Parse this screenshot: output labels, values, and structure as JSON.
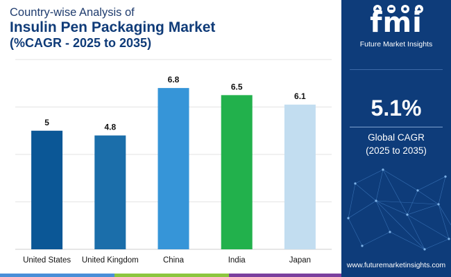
{
  "title": {
    "line1": "Country-wise Analysis of",
    "line2": "Insulin Pen Packaging Market",
    "line3": "(%CAGR - 2025 to 2035)"
  },
  "chart_data": {
    "type": "bar",
    "categories": [
      "United States",
      "United Kingdom",
      "China",
      "India",
      "Japan"
    ],
    "values": [
      5,
      4.8,
      6.8,
      6.5,
      6.1
    ],
    "value_labels": [
      "5",
      "4.8",
      "6.8",
      "6.5",
      "6.1"
    ],
    "colors": [
      "#0b5796",
      "#1b6eaa",
      "#3695d8",
      "#22b14c",
      "#c2ddf0"
    ],
    "ylim": [
      0,
      8
    ],
    "grid": true,
    "legend": "none"
  },
  "panel": {
    "logo_text": "fmi",
    "logo_subtitle": "Future Market Insights",
    "cagr_value": "5.1%",
    "cagr_label_line1": "Global CAGR",
    "cagr_label_line2": "(2025 to 2035)",
    "website": "www.futuremarketinsights.com",
    "background": "#0e3c7a"
  },
  "bottom_bar_colors": [
    "#4a8fd8",
    "#8cc63f",
    "#e8891a",
    "#7b3f9e"
  ]
}
